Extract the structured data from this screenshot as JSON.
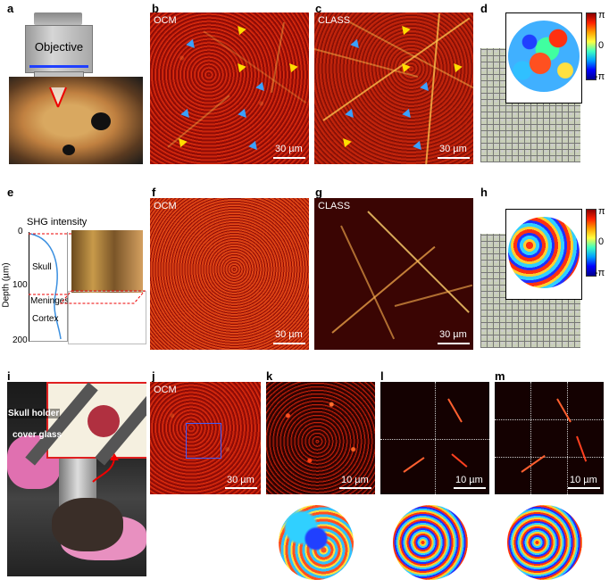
{
  "panel_letters": {
    "a": "a",
    "b": "b",
    "c": "c",
    "d": "d",
    "e": "e",
    "f": "f",
    "g": "g",
    "h": "h",
    "i": "i",
    "j": "j",
    "k": "k",
    "l": "l",
    "m": "m"
  },
  "panel_a": {
    "objective_label": "Objective"
  },
  "panel_b": {
    "corner": "OCM",
    "scale": "30 µm"
  },
  "panel_c": {
    "corner": "CLASS",
    "scale": "30 µm"
  },
  "panel_d": {
    "cb_top": "π",
    "cb_mid": "0",
    "cb_bot": "-π"
  },
  "panel_e": {
    "title": "SHG intensity",
    "ylabel": "Depth (µm)",
    "ticks": [
      "0",
      "100",
      "200"
    ],
    "layers": [
      "Skull",
      "Meninges",
      "Cortex"
    ]
  },
  "panel_f": {
    "corner": "OCM",
    "scale": "30 µm"
  },
  "panel_g": {
    "corner": "CLASS",
    "scale": "30 µm"
  },
  "panel_h": {
    "cb_top": "π",
    "cb_mid": "0",
    "cb_bot": "-π"
  },
  "panel_i": {
    "skull_holder": "Skull holder",
    "cover_glass": "cover glass"
  },
  "panel_j": {
    "corner": "OCM",
    "scale": "30 µm"
  },
  "panel_k": {
    "scale": "10 µm"
  },
  "panel_l": {
    "scale": "10 µm"
  },
  "panel_m": {
    "scale": "10 µm"
  },
  "colors": {
    "ocm_red": "#a01407",
    "arrow_blue": "#3aa0ff",
    "arrow_yellow": "#ffdd00",
    "inset_border": "#e02020"
  }
}
